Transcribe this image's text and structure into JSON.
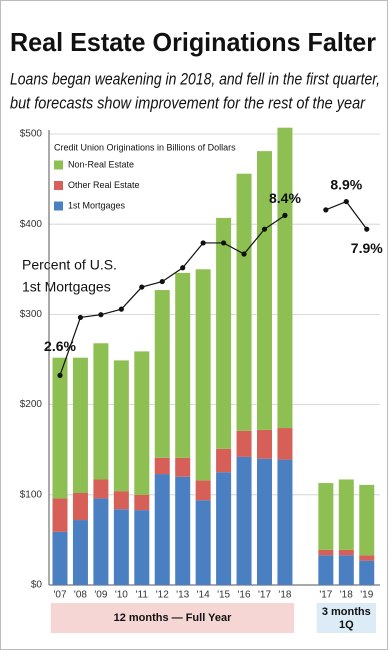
{
  "chart_data": {
    "type": "stacked-bar-line",
    "title": "Real Estate Originations Falter",
    "subtitle": [
      "Loans began weakening in 2018, and fell in the first quarter,",
      "but forecasts show improvement for the rest of the year"
    ],
    "legend_title": "Credit Union Originations in Billions of Dollars",
    "annotation": [
      "Percent of U.S.",
      "1st Mortgages"
    ],
    "categories": [
      "'07",
      "'08",
      "'09",
      "'10",
      "'11",
      "'12",
      "'13",
      "'14",
      "'15",
      "'16",
      "'17",
      "'18",
      null,
      "'17",
      "'18",
      "'19"
    ],
    "groups": [
      {
        "label": "12 months — Full Year",
        "from": 0,
        "to": 11,
        "color": "#f6d5d5"
      },
      {
        "label": [
          "3 months",
          "1Q"
        ],
        "from": 13,
        "to": 15,
        "color": "#dcecf6"
      }
    ],
    "series": [
      {
        "name": "1st Mortgages",
        "color": "#4a7fc1",
        "values": [
          59,
          72,
          96,
          84,
          83,
          123,
          120,
          94,
          125,
          142,
          140,
          139,
          null,
          33,
          33,
          27
        ]
      },
      {
        "name": "Other Real Estate",
        "color": "#d65f57",
        "values": [
          37,
          30,
          21,
          20,
          17,
          18,
          21,
          22,
          26,
          29,
          32,
          35,
          null,
          6,
          6,
          6
        ]
      },
      {
        "name": "Non-Real Estate",
        "color": "#8dbf52",
        "values": [
          156,
          150,
          151,
          145,
          159,
          186,
          205,
          234,
          256,
          285,
          309,
          333,
          null,
          74,
          78,
          78
        ]
      },
      {
        "name": "Percent of U.S. 1st Mortgages",
        "type": "line",
        "axis": "y2",
        "color": "#111111",
        "values": [
          2.6,
          4.7,
          4.8,
          5.0,
          5.8,
          6.0,
          6.5,
          7.4,
          7.4,
          7.0,
          7.9,
          8.4,
          null,
          8.6,
          8.9,
          7.9
        ],
        "value_labels": [
          "2.6%",
          null,
          null,
          null,
          null,
          null,
          null,
          null,
          null,
          null,
          null,
          "8.4%",
          null,
          null,
          "8.9%",
          "7.9%"
        ]
      }
    ],
    "ylim": [
      0,
      500
    ],
    "yticks": [
      {
        "value": 0,
        "label": "$0"
      },
      {
        "value": 100,
        "label": "$100"
      },
      {
        "value": 200,
        "label": "$200"
      },
      {
        "value": 300,
        "label": "$300"
      },
      {
        "value": 400,
        "label": "$400"
      },
      {
        "value": 500,
        "label": "$500"
      }
    ],
    "y2lim": [
      -5,
      11.35
    ],
    "grid": true
  }
}
